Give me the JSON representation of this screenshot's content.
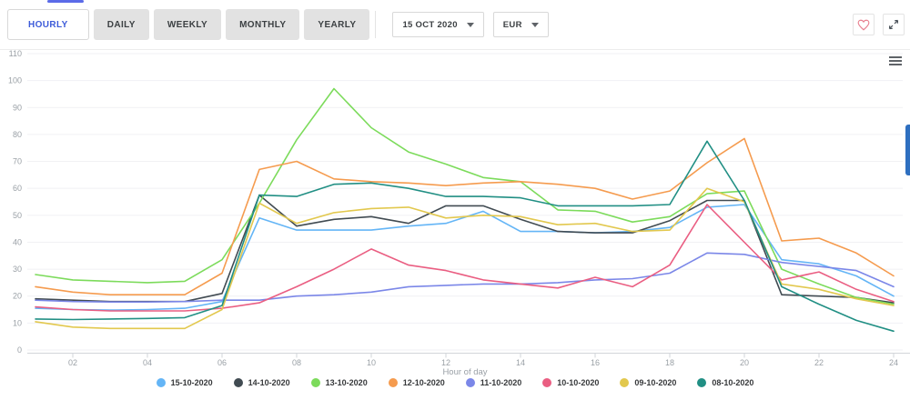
{
  "toolbar": {
    "tabs": [
      {
        "label": "HOURLY",
        "active": true
      },
      {
        "label": "DAILY",
        "active": false
      },
      {
        "label": "WEEKLY",
        "active": false
      },
      {
        "label": "MONTHLY",
        "active": false
      },
      {
        "label": "YEARLY",
        "active": false
      }
    ],
    "date_select": {
      "value": "15 OCT 2020",
      "icon": "caret-down"
    },
    "currency_select": {
      "value": "EUR",
      "icon": "caret-down"
    },
    "favorite_icon": "heart-outline",
    "fullscreen_icon": "expand-arrows",
    "accent_color": "#3d5bd9",
    "heart_color": "#e8808f"
  },
  "chart_menu_icon": "hamburger-menu",
  "side_scroll_color": "#2e6fc0",
  "chart_data": {
    "type": "line",
    "title": "",
    "xlabel": "Hour of day",
    "ylabel": "",
    "x": [
      1,
      2,
      3,
      4,
      5,
      6,
      7,
      8,
      9,
      10,
      11,
      12,
      13,
      14,
      15,
      16,
      17,
      18,
      19,
      20,
      21,
      22,
      23,
      24
    ],
    "x_tick_labels": [
      "02",
      "04",
      "06",
      "08",
      "10",
      "12",
      "14",
      "16",
      "18",
      "20",
      "22",
      "24"
    ],
    "x_tick_values": [
      2,
      4,
      6,
      8,
      10,
      12,
      14,
      16,
      18,
      20,
      22,
      24
    ],
    "ylim": [
      0,
      110
    ],
    "y_tick_values": [
      0,
      10,
      20,
      30,
      40,
      50,
      60,
      70,
      80,
      90,
      100,
      110
    ],
    "grid": "horizontal",
    "legend_position": "bottom",
    "series": [
      {
        "name": "15-10-2020",
        "color": "#64b5f6",
        "values": [
          15.5,
          15,
          14.8,
          15,
          15.5,
          18,
          49,
          44.5,
          44.5,
          44.5,
          46,
          47,
          51.5,
          44,
          44,
          43.5,
          44,
          45.5,
          53,
          54,
          33.5,
          32,
          27.5,
          20
        ]
      },
      {
        "name": "14-10-2020",
        "color": "#414b52",
        "values": [
          19,
          18.5,
          18,
          18,
          18,
          21,
          57.5,
          46,
          48.5,
          49.5,
          47,
          53.5,
          53.5,
          48.5,
          44,
          43.5,
          43.5,
          48,
          55.5,
          55.5,
          20.5,
          20,
          19.5,
          17.5
        ]
      },
      {
        "name": "13-10-2020",
        "color": "#7cdb5b",
        "values": [
          28,
          26,
          25.5,
          25,
          25.5,
          33.5,
          54.5,
          78,
          97,
          82.5,
          73.5,
          69,
          64,
          62.5,
          52,
          51.5,
          47.5,
          49.5,
          58,
          59,
          30,
          24.5,
          19.5,
          17
        ]
      },
      {
        "name": "12-10-2020",
        "color": "#f59b4e",
        "values": [
          23.5,
          21.5,
          20.5,
          20.5,
          20.5,
          28.5,
          67,
          70,
          63.5,
          62.5,
          62,
          61,
          62,
          62.5,
          61.5,
          60,
          56,
          59,
          69.5,
          78.5,
          40.5,
          41.5,
          36,
          27.5
        ]
      },
      {
        "name": "11-10-2020",
        "color": "#7b87e8",
        "values": [
          18.5,
          18,
          17.8,
          17.8,
          18,
          18.5,
          18.5,
          20,
          20.5,
          21.5,
          23.5,
          24,
          24.5,
          24.5,
          25,
          26,
          26.5,
          28.5,
          36,
          35.5,
          32.5,
          31,
          29.5,
          23.5
        ]
      },
      {
        "name": "10-10-2020",
        "color": "#ea5e82",
        "values": [
          16,
          15,
          14.5,
          14.5,
          14.5,
          15.5,
          17.5,
          23.5,
          30,
          37.5,
          31.5,
          29.5,
          26,
          24.5,
          23,
          27,
          23.5,
          31.5,
          54,
          40,
          26,
          29,
          22.5,
          18
        ]
      },
      {
        "name": "09-10-2020",
        "color": "#e2c84e",
        "values": [
          10.5,
          8.5,
          8,
          8,
          8,
          15,
          54.5,
          47,
          51,
          52.5,
          53,
          49,
          50,
          49.5,
          46.5,
          47,
          44,
          44.5,
          60,
          55,
          24.5,
          22.5,
          19,
          16.5
        ]
      },
      {
        "name": "08-10-2020",
        "color": "#218f84",
        "values": [
          11.5,
          11.3,
          11.5,
          11.7,
          12,
          16.5,
          57.5,
          57,
          61.5,
          62,
          60,
          57,
          57,
          56.5,
          53.5,
          53.5,
          53.5,
          54,
          77.5,
          55.5,
          23.5,
          17,
          11,
          7
        ]
      }
    ]
  }
}
